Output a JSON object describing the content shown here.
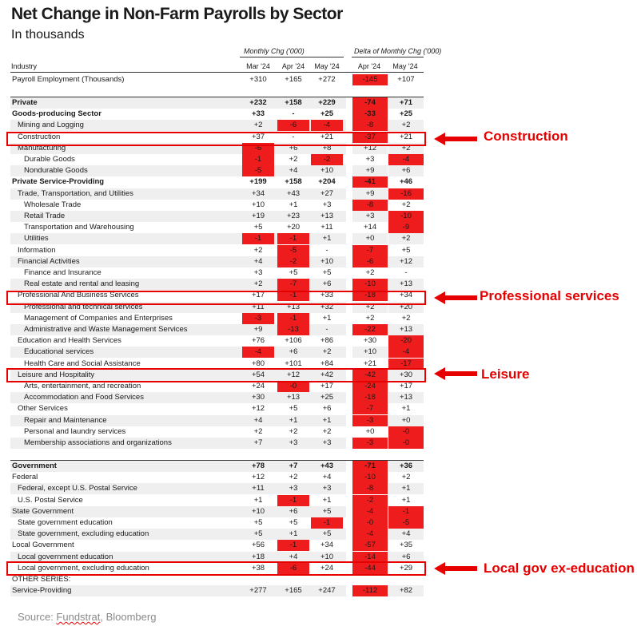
{
  "title": "Net Change in Non-Farm Payrolls by Sector",
  "subtitle": "In thousands",
  "group_headers": {
    "monthly": "Monthly Chg ('000)",
    "delta": "Delta of Monthly Chg ('000)"
  },
  "columns": {
    "industry": "Industry",
    "monthly": [
      "Mar '24",
      "Apr '24",
      "May '24"
    ],
    "delta": [
      "Apr '24",
      "May '24"
    ]
  },
  "rows": [
    {
      "label": "Payroll Employment (Thousands)",
      "indent": 0,
      "bold": false,
      "shaded": false,
      "values": [
        "+310",
        "+165",
        "+272"
      ],
      "deltas": [
        "-145",
        "+107"
      ]
    },
    {
      "label": "Private",
      "indent": 0,
      "bold": true,
      "shaded": true,
      "values": [
        "+232",
        "+158",
        "+229"
      ],
      "deltas": [
        "-74",
        "+71"
      ]
    },
    {
      "label": "Goods-producing Sector",
      "indent": 0,
      "bold": true,
      "shaded": false,
      "values": [
        "+33",
        "-",
        "+25"
      ],
      "deltas": [
        "-33",
        "+25"
      ]
    },
    {
      "label": "Mining and Logging",
      "indent": 1,
      "bold": false,
      "shaded": true,
      "values": [
        "+2",
        "-6",
        "-4"
      ],
      "deltas": [
        "-8",
        "+2"
      ]
    },
    {
      "label": "Construction",
      "indent": 1,
      "bold": false,
      "shaded": false,
      "values": [
        "+37",
        "-",
        "+21"
      ],
      "deltas": [
        "-37",
        "+21"
      ]
    },
    {
      "label": "Manufacturing",
      "indent": 1,
      "bold": false,
      "shaded": true,
      "values": [
        "-6",
        "+6",
        "+8"
      ],
      "deltas": [
        "+12",
        "+2"
      ]
    },
    {
      "label": "Durable Goods",
      "indent": 2,
      "bold": false,
      "shaded": false,
      "values": [
        "-1",
        "+2",
        "-2"
      ],
      "deltas": [
        "+3",
        "-4"
      ]
    },
    {
      "label": "Nondurable Goods",
      "indent": 2,
      "bold": false,
      "shaded": true,
      "values": [
        "-5",
        "+4",
        "+10"
      ],
      "deltas": [
        "+9",
        "+6"
      ]
    },
    {
      "label": "Private Service-Providing",
      "indent": 0,
      "bold": true,
      "shaded": false,
      "values": [
        "+199",
        "+158",
        "+204"
      ],
      "deltas": [
        "-41",
        "+46"
      ]
    },
    {
      "label": "Trade, Transportation, and Utilities",
      "indent": 1,
      "bold": false,
      "shaded": true,
      "values": [
        "+34",
        "+43",
        "+27"
      ],
      "deltas": [
        "+9",
        "-16"
      ]
    },
    {
      "label": "Wholesale Trade",
      "indent": 2,
      "bold": false,
      "shaded": false,
      "values": [
        "+10",
        "+1",
        "+3"
      ],
      "deltas": [
        "-8",
        "+2"
      ]
    },
    {
      "label": "Retail Trade",
      "indent": 2,
      "bold": false,
      "shaded": true,
      "values": [
        "+19",
        "+23",
        "+13"
      ],
      "deltas": [
        "+3",
        "-10"
      ]
    },
    {
      "label": "Transportation and Warehousing",
      "indent": 2,
      "bold": false,
      "shaded": false,
      "values": [
        "+5",
        "+20",
        "+11"
      ],
      "deltas": [
        "+14",
        "-9"
      ]
    },
    {
      "label": "Utilities",
      "indent": 2,
      "bold": false,
      "shaded": true,
      "values": [
        "-1",
        "-1",
        "+1"
      ],
      "deltas": [
        "+0",
        "+2"
      ]
    },
    {
      "label": "Information",
      "indent": 1,
      "bold": false,
      "shaded": false,
      "values": [
        "+2",
        "-5",
        "-"
      ],
      "deltas": [
        "-7",
        "+5"
      ]
    },
    {
      "label": "Financial Activities",
      "indent": 1,
      "bold": false,
      "shaded": true,
      "values": [
        "+4",
        "-2",
        "+10"
      ],
      "deltas": [
        "-6",
        "+12"
      ]
    },
    {
      "label": "Finance and Insurance",
      "indent": 2,
      "bold": false,
      "shaded": false,
      "values": [
        "+3",
        "+5",
        "+5"
      ],
      "deltas": [
        "+2",
        "-"
      ]
    },
    {
      "label": "Real estate and rental and leasing",
      "indent": 2,
      "bold": false,
      "shaded": true,
      "values": [
        "+2",
        "-7",
        "+6"
      ],
      "deltas": [
        "-10",
        "+13"
      ]
    },
    {
      "label": "Professional And Business Services",
      "indent": 1,
      "bold": false,
      "shaded": false,
      "values": [
        "+17",
        "-1",
        "+33"
      ],
      "deltas": [
        "-18",
        "+34"
      ]
    },
    {
      "label": "Professional and technical services",
      "indent": 2,
      "bold": false,
      "shaded": true,
      "values": [
        "+11",
        "+13",
        "+32"
      ],
      "deltas": [
        "+2",
        "+20"
      ]
    },
    {
      "label": "Management of Companies and Enterprises",
      "indent": 2,
      "bold": false,
      "shaded": false,
      "values": [
        "-3",
        "-1",
        "+1"
      ],
      "deltas": [
        "+2",
        "+2"
      ]
    },
    {
      "label": "Administrative and Waste Management Services",
      "indent": 2,
      "bold": false,
      "shaded": true,
      "values": [
        "+9",
        "-13",
        "-"
      ],
      "deltas": [
        "-22",
        "+13"
      ]
    },
    {
      "label": "Education and Health Services",
      "indent": 1,
      "bold": false,
      "shaded": false,
      "values": [
        "+76",
        "+106",
        "+86"
      ],
      "deltas": [
        "+30",
        "-20"
      ]
    },
    {
      "label": "Educational services",
      "indent": 2,
      "bold": false,
      "shaded": true,
      "values": [
        "-4",
        "+6",
        "+2"
      ],
      "deltas": [
        "+10",
        "-4"
      ]
    },
    {
      "label": "Health Care and Social Assistance",
      "indent": 2,
      "bold": false,
      "shaded": false,
      "values": [
        "+80",
        "+101",
        "+84"
      ],
      "deltas": [
        "+21",
        "-17"
      ]
    },
    {
      "label": "Leisure and Hospitality",
      "indent": 1,
      "bold": false,
      "shaded": true,
      "values": [
        "+54",
        "+12",
        "+42"
      ],
      "deltas": [
        "-42",
        "+30"
      ]
    },
    {
      "label": "Arts, entertainment, and recreation",
      "indent": 2,
      "bold": false,
      "shaded": false,
      "values": [
        "+24",
        "-0",
        "+17"
      ],
      "deltas": [
        "-24",
        "+17"
      ]
    },
    {
      "label": "Accommodation and Food Services",
      "indent": 2,
      "bold": false,
      "shaded": true,
      "values": [
        "+30",
        "+13",
        "+25"
      ],
      "deltas": [
        "-18",
        "+13"
      ]
    },
    {
      "label": "Other Services",
      "indent": 1,
      "bold": false,
      "shaded": false,
      "values": [
        "+12",
        "+5",
        "+6"
      ],
      "deltas": [
        "-7",
        "+1"
      ]
    },
    {
      "label": "Repair and Maintenance",
      "indent": 2,
      "bold": false,
      "shaded": true,
      "values": [
        "+4",
        "+1",
        "+1"
      ],
      "deltas": [
        "-3",
        "+0"
      ]
    },
    {
      "label": "Personal and laundry services",
      "indent": 2,
      "bold": false,
      "shaded": false,
      "values": [
        "+2",
        "+2",
        "+2"
      ],
      "deltas": [
        "+0",
        "-0"
      ]
    },
    {
      "label": "Membership associations and organizations",
      "indent": 2,
      "bold": false,
      "shaded": true,
      "values": [
        "+7",
        "+3",
        "+3"
      ],
      "deltas": [
        "-3",
        "-0"
      ]
    },
    {
      "label": "Government",
      "indent": 0,
      "bold": true,
      "shaded": true,
      "values": [
        "+78",
        "+7",
        "+43"
      ],
      "deltas": [
        "-71",
        "+36"
      ]
    },
    {
      "label": "Federal",
      "indent": 0,
      "bold": false,
      "shaded": false,
      "values": [
        "+12",
        "+2",
        "+4"
      ],
      "deltas": [
        "-10",
        "+2"
      ]
    },
    {
      "label": "Federal, except U.S. Postal Service",
      "indent": 1,
      "bold": false,
      "shaded": true,
      "values": [
        "+11",
        "+3",
        "+3"
      ],
      "deltas": [
        "-8",
        "+1"
      ]
    },
    {
      "label": "U.S. Postal Service",
      "indent": 1,
      "bold": false,
      "shaded": false,
      "values": [
        "+1",
        "-1",
        "+1"
      ],
      "deltas": [
        "-2",
        "+1"
      ]
    },
    {
      "label": "State Government",
      "indent": 0,
      "bold": false,
      "shaded": true,
      "values": [
        "+10",
        "+6",
        "+5"
      ],
      "deltas": [
        "-4",
        "-1"
      ]
    },
    {
      "label": "State government education",
      "indent": 1,
      "bold": false,
      "shaded": false,
      "values": [
        "+5",
        "+5",
        "-1"
      ],
      "deltas": [
        "-0",
        "-5"
      ]
    },
    {
      "label": "State government, excluding education",
      "indent": 1,
      "bold": false,
      "shaded": true,
      "values": [
        "+5",
        "+1",
        "+5"
      ],
      "deltas": [
        "-4",
        "+4"
      ]
    },
    {
      "label": "Local Government",
      "indent": 0,
      "bold": false,
      "shaded": false,
      "values": [
        "+56",
        "-1",
        "+34"
      ],
      "deltas": [
        "-57",
        "+35"
      ]
    },
    {
      "label": "Local government education",
      "indent": 1,
      "bold": false,
      "shaded": true,
      "values": [
        "+18",
        "+4",
        "+10"
      ],
      "deltas": [
        "-14",
        "+6"
      ]
    },
    {
      "label": "Local government, excluding education",
      "indent": 1,
      "bold": false,
      "shaded": false,
      "values": [
        "+38",
        "-6",
        "+24"
      ],
      "deltas": [
        "-44",
        "+29"
      ]
    },
    {
      "label": "OTHER SERIES:",
      "indent": 0,
      "bold": false,
      "shaded": false,
      "values": [
        "",
        "",
        ""
      ],
      "deltas": [
        "",
        ""
      ]
    },
    {
      "label": "Service-Providing",
      "indent": 0,
      "bold": false,
      "shaded": true,
      "values": [
        "+277",
        "+165",
        "+247"
      ],
      "deltas": [
        "-112",
        "+82"
      ]
    }
  ],
  "negative_fill_color": "#ee1c1c",
  "highlight_color": "#e60000",
  "callouts": [
    "Construction",
    "Professional services",
    "Leisure",
    "Local gov ex-education"
  ],
  "source": {
    "prefix": "Source: ",
    "name": "Fundstrat",
    "suffix": ", Bloomberg"
  }
}
